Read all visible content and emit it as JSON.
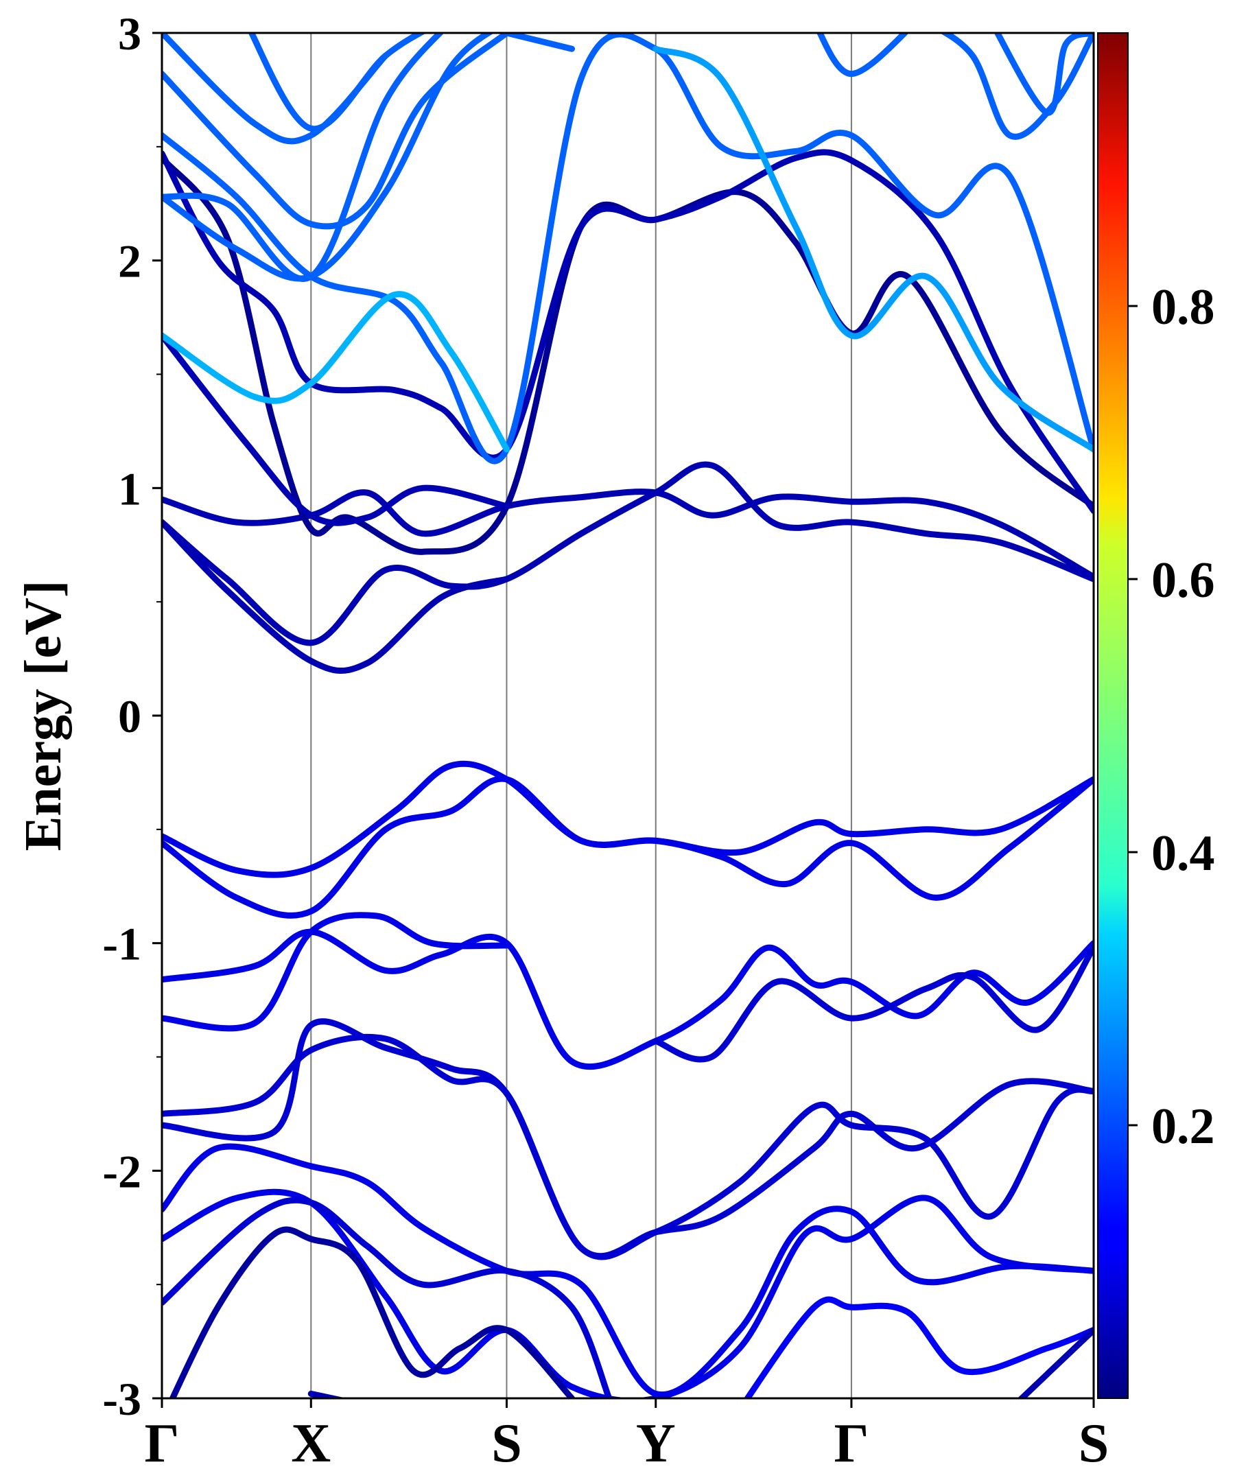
{
  "chart_data": {
    "type": "line",
    "ylabel": "Energy [eV]",
    "ylim": [
      -3,
      3
    ],
    "y_ticks": [
      "3",
      "2",
      "1",
      "0",
      "-1",
      "-2",
      "-3"
    ],
    "y_tick_values": [
      3,
      2,
      1,
      0,
      -1,
      -2,
      -3
    ],
    "x_ticks": [
      "Γ",
      "X",
      "S",
      "Y",
      "Γ",
      "S"
    ],
    "x_tick_positions": [
      0,
      0.8,
      1.85,
      2.65,
      3.7,
      5.0
    ],
    "xlim": [
      0,
      5.0
    ],
    "grid": "vertical lines at high-symmetry points",
    "colorbar": {
      "colormap": "jet",
      "range": [
        0,
        1
      ],
      "ticks": [
        "0.8",
        "0.6",
        "0.4",
        "0.2"
      ],
      "tick_values": [
        0.8,
        0.6,
        0.4,
        0.2
      ]
    },
    "series": [
      {
        "values": [
          [
            0,
            0.95
          ],
          [
            0.4,
            0.85
          ],
          [
            0.8,
            0.88
          ],
          [
            1.1,
            0.98
          ],
          [
            1.4,
            0.8
          ],
          [
            1.85,
            0.92
          ],
          [
            2.25,
            0.96
          ],
          [
            2.65,
            0.98
          ],
          [
            2.95,
            0.88
          ],
          [
            3.3,
            0.96
          ],
          [
            3.7,
            0.94
          ],
          [
            4.1,
            0.94
          ],
          [
            4.5,
            0.84
          ],
          [
            5.0,
            0.61
          ]
        ],
        "w": 0.05
      },
      {
        "values": [
          [
            0,
            0.85
          ],
          [
            0.35,
            0.6
          ],
          [
            0.8,
            0.32
          ],
          [
            1.2,
            0.64
          ],
          [
            1.55,
            0.57
          ],
          [
            1.85,
            0.6
          ],
          [
            2.25,
            0.8
          ],
          [
            2.65,
            0.98
          ],
          [
            2.95,
            1.1
          ],
          [
            3.3,
            0.84
          ],
          [
            3.7,
            0.85
          ],
          [
            4.1,
            0.8
          ],
          [
            4.5,
            0.76
          ],
          [
            5.0,
            0.6
          ]
        ],
        "w": 0.05
      },
      {
        "values": [
          [
            0,
            0.85
          ],
          [
            0.35,
            0.55
          ],
          [
            0.8,
            0.24
          ],
          [
            1.1,
            0.23
          ],
          [
            1.5,
            0.52
          ],
          [
            1.85,
            0.6
          ]
        ],
        "w": 0.05
      },
      {
        "values": [
          [
            0,
            -0.53
          ],
          [
            0.4,
            -0.68
          ],
          [
            0.8,
            -0.67
          ],
          [
            1.25,
            -0.42
          ],
          [
            1.55,
            -0.22
          ],
          [
            1.85,
            -0.28
          ],
          [
            2.25,
            -0.55
          ],
          [
            2.65,
            -0.55
          ],
          [
            3.1,
            -0.6
          ],
          [
            3.5,
            -0.47
          ],
          [
            3.7,
            -0.52
          ],
          [
            4.1,
            -0.5
          ],
          [
            4.5,
            -0.5
          ],
          [
            5.0,
            -0.28
          ]
        ],
        "w": 0.1
      },
      {
        "values": [
          [
            0,
            -0.56
          ],
          [
            0.4,
            -0.8
          ],
          [
            0.8,
            -0.86
          ],
          [
            1.2,
            -0.5
          ],
          [
            1.55,
            -0.42
          ],
          [
            1.85,
            -0.28
          ],
          [
            2.25,
            -0.55
          ],
          [
            2.65,
            -0.55
          ],
          [
            3.0,
            -0.62
          ],
          [
            3.35,
            -0.74
          ],
          [
            3.7,
            -0.56
          ],
          [
            4.15,
            -0.8
          ],
          [
            4.55,
            -0.58
          ],
          [
            5.0,
            -0.28
          ]
        ],
        "w": 0.1
      },
      {
        "values": [
          [
            0,
            -1.16
          ],
          [
            0.5,
            -1.1
          ],
          [
            0.8,
            -0.95
          ],
          [
            1.2,
            -1.12
          ],
          [
            1.5,
            -1.05
          ],
          [
            1.85,
            -1.0
          ],
          [
            2.2,
            -1.52
          ],
          [
            2.65,
            -1.43
          ],
          [
            3.0,
            -1.25
          ],
          [
            3.25,
            -1.02
          ],
          [
            3.5,
            -1.18
          ],
          [
            3.7,
            -1.17
          ],
          [
            4.05,
            -1.32
          ],
          [
            4.35,
            -1.13
          ],
          [
            4.65,
            -1.26
          ],
          [
            5.0,
            -1.0
          ]
        ],
        "w": 0.1
      },
      {
        "values": [
          [
            0,
            -1.33
          ],
          [
            0.5,
            -1.35
          ],
          [
            0.8,
            -0.95
          ],
          [
            1.15,
            -0.88
          ],
          [
            1.45,
            -1.0
          ],
          [
            1.85,
            -1.01
          ]
        ],
        "w": 0.1
      },
      {
        "values": [
          [
            2.65,
            -1.43
          ],
          [
            2.95,
            -1.5
          ],
          [
            3.3,
            -1.17
          ],
          [
            3.7,
            -1.33
          ],
          [
            4.1,
            -1.2
          ],
          [
            4.35,
            -1.15
          ],
          [
            4.7,
            -1.38
          ],
          [
            5.0,
            -1.02
          ]
        ],
        "w": 0.08
      },
      {
        "values": [
          [
            0,
            -1.75
          ],
          [
            0.5,
            -1.7
          ],
          [
            0.8,
            -1.47
          ],
          [
            1.2,
            -1.42
          ],
          [
            1.55,
            -1.6
          ],
          [
            1.85,
            -1.66
          ],
          [
            2.25,
            -2.34
          ],
          [
            2.65,
            -2.27
          ],
          [
            3.0,
            -2.2
          ],
          [
            3.5,
            -1.9
          ],
          [
            3.7,
            -1.75
          ],
          [
            4.05,
            -1.9
          ],
          [
            4.55,
            -1.62
          ],
          [
            5.0,
            -1.65
          ]
        ],
        "w": 0.08
      },
      {
        "values": [
          [
            0,
            -1.8
          ],
          [
            0.6,
            -1.83
          ],
          [
            0.8,
            -1.36
          ],
          [
            1.2,
            -1.46
          ],
          [
            1.55,
            -1.55
          ],
          [
            1.85,
            -1.66
          ],
          [
            2.25,
            -2.34
          ],
          [
            2.65,
            -2.27
          ],
          [
            3.1,
            -2.05
          ],
          [
            3.5,
            -1.72
          ],
          [
            3.7,
            -1.8
          ],
          [
            4.1,
            -1.86
          ],
          [
            4.45,
            -2.2
          ],
          [
            4.8,
            -1.7
          ],
          [
            5.0,
            -1.65
          ]
        ],
        "w": 0.08
      },
      {
        "values": [
          [
            0,
            -2.17
          ],
          [
            0.3,
            -1.9
          ],
          [
            0.8,
            -1.98
          ],
          [
            1.1,
            -2.05
          ],
          [
            1.4,
            -2.25
          ],
          [
            1.85,
            -2.44
          ],
          [
            2.25,
            -2.5
          ],
          [
            2.65,
            -2.98
          ],
          [
            3.1,
            -2.7
          ],
          [
            3.4,
            -2.27
          ],
          [
            3.7,
            -2.18
          ],
          [
            4.05,
            -2.48
          ],
          [
            4.55,
            -2.42
          ],
          [
            5.0,
            -2.44
          ]
        ],
        "w": 0.1
      },
      {
        "values": [
          [
            0,
            -2.3
          ],
          [
            0.4,
            -2.12
          ],
          [
            0.8,
            -2.14
          ],
          [
            1.2,
            -2.55
          ],
          [
            1.5,
            -2.88
          ],
          [
            1.85,
            -2.7
          ],
          [
            2.2,
            -2.95
          ],
          [
            2.65,
            -3.0
          ],
          [
            3.1,
            -2.78
          ],
          [
            3.45,
            -2.28
          ],
          [
            3.7,
            -2.3
          ],
          [
            4.1,
            -2.12
          ],
          [
            4.45,
            -2.38
          ],
          [
            5.0,
            -2.44
          ]
        ],
        "w": 0.1
      },
      {
        "values": [
          [
            0,
            -2.58
          ],
          [
            0.5,
            -2.2
          ],
          [
            0.8,
            -2.14
          ],
          [
            1.1,
            -2.33
          ],
          [
            1.4,
            -2.5
          ],
          [
            1.85,
            -2.44
          ],
          [
            2.2,
            -2.6
          ],
          [
            2.4,
            -3.0
          ]
        ],
        "w": 0.08
      },
      {
        "values": [
          [
            0,
            -3.1
          ],
          [
            0.3,
            -2.6
          ],
          [
            0.6,
            -2.28
          ],
          [
            0.8,
            -2.3
          ],
          [
            1.05,
            -2.4
          ],
          [
            1.35,
            -2.88
          ],
          [
            1.6,
            -2.78
          ],
          [
            1.85,
            -2.7
          ],
          [
            2.2,
            -3.0
          ]
        ],
        "w": 0.03
      },
      {
        "values": [
          [
            0.8,
            -2.98
          ],
          [
            1.2,
            -3.05
          ]
        ],
        "w": 0.05
      },
      {
        "values": [
          [
            3.1,
            -3.05
          ],
          [
            3.5,
            -2.6
          ],
          [
            3.7,
            -2.6
          ],
          [
            4.0,
            -2.62
          ],
          [
            4.3,
            -2.88
          ],
          [
            4.75,
            -2.78
          ],
          [
            5.0,
            -2.7
          ]
        ],
        "w": 0.12
      },
      {
        "values": [
          [
            4.55,
            -3.05
          ],
          [
            5.0,
            -2.7
          ]
        ],
        "w": 0.05
      },
      {
        "values": [
          [
            0,
            2.45
          ],
          [
            0.35,
            2.1
          ],
          [
            0.6,
            1.28
          ],
          [
            0.8,
            0.82
          ],
          [
            1.0,
            0.87
          ],
          [
            1.4,
            0.72
          ],
          [
            1.85,
            0.92
          ],
          [
            2.25,
            2.15
          ],
          [
            2.65,
            2.18
          ],
          [
            3.1,
            2.3
          ],
          [
            3.4,
            2.08
          ],
          [
            3.7,
            1.68
          ],
          [
            4.0,
            1.93
          ],
          [
            4.5,
            1.25
          ],
          [
            5.0,
            0.92
          ]
        ],
        "w": 0.02
      },
      {
        "values": [
          [
            0,
            2.47
          ],
          [
            0.3,
            2.0
          ],
          [
            0.6,
            1.78
          ],
          [
            0.8,
            1.46
          ],
          [
            1.25,
            1.43
          ],
          [
            1.5,
            1.35
          ],
          [
            1.85,
            1.17
          ],
          [
            2.25,
            2.15
          ],
          [
            2.65,
            2.18
          ],
          [
            3.0,
            2.28
          ],
          [
            3.4,
            2.45
          ],
          [
            3.7,
            2.44
          ],
          [
            4.15,
            2.12
          ],
          [
            4.55,
            1.45
          ],
          [
            5.0,
            0.9
          ]
        ],
        "w": 0.05
      },
      {
        "values": [
          [
            0,
            2.55
          ],
          [
            0.4,
            2.28
          ],
          [
            0.8,
            1.93
          ],
          [
            1.25,
            1.82
          ],
          [
            1.5,
            1.55
          ],
          [
            1.85,
            1.17
          ],
          [
            2.25,
            2.8
          ],
          [
            2.65,
            2.93
          ],
          [
            3.0,
            2.5
          ],
          [
            3.4,
            2.48
          ],
          [
            3.7,
            2.55
          ],
          [
            4.15,
            2.2
          ],
          [
            4.55,
            2.37
          ],
          [
            5.0,
            1.17
          ]
        ],
        "w": 0.22
      },
      {
        "values": [
          [
            0,
            1.67
          ],
          [
            0.45,
            1.2
          ],
          [
            0.8,
            0.88
          ],
          [
            1.1,
            0.87
          ],
          [
            1.4,
            1.0
          ],
          [
            1.85,
            0.92
          ]
        ],
        "w": 0.05
      },
      {
        "values": [
          [
            0,
            1.67
          ],
          [
            0.5,
            1.4
          ],
          [
            0.8,
            1.46
          ],
          [
            1.25,
            1.85
          ],
          [
            1.55,
            1.6
          ],
          [
            1.85,
            1.17
          ]
        ],
        "w": 0.3
      },
      {
        "values": [
          [
            0,
            2.28
          ],
          [
            0.4,
            2.05
          ],
          [
            0.8,
            1.93
          ],
          [
            1.2,
            2.3
          ],
          [
            1.55,
            2.85
          ],
          [
            1.85,
            3.05
          ]
        ],
        "w": 0.22
      },
      {
        "values": [
          [
            0,
            2.82
          ],
          [
            0.5,
            2.38
          ],
          [
            0.8,
            2.16
          ],
          [
            1.1,
            2.24
          ],
          [
            1.4,
            2.7
          ],
          [
            1.85,
            3.0
          ]
        ],
        "w": 0.22
      },
      {
        "values": [
          [
            0,
            2.28
          ],
          [
            0.35,
            2.25
          ],
          [
            0.8,
            1.93
          ],
          [
            1.2,
            2.7
          ],
          [
            1.55,
            3.05
          ]
        ],
        "w": 0.22
      },
      {
        "values": [
          [
            0,
            3.0
          ],
          [
            0.5,
            2.6
          ],
          [
            0.8,
            2.55
          ],
          [
            1.2,
            2.9
          ]
        ],
        "w": 0.22
      },
      {
        "values": [
          [
            0.45,
            3.05
          ],
          [
            0.8,
            2.58
          ],
          [
            1.2,
            2.9
          ],
          [
            1.5,
            3.05
          ]
        ],
        "w": 0.22
      },
      {
        "values": [
          [
            1.85,
            3.0
          ],
          [
            2.2,
            2.93
          ]
        ],
        "w": 0.22
      },
      {
        "values": [
          [
            2.65,
            2.93
          ],
          [
            3.0,
            2.8
          ],
          [
            3.4,
            2.15
          ],
          [
            3.7,
            1.67
          ],
          [
            4.1,
            1.93
          ],
          [
            4.5,
            1.45
          ],
          [
            5.0,
            1.17
          ]
        ],
        "w": 0.28
      },
      {
        "values": [
          [
            3.5,
            3.05
          ],
          [
            3.7,
            2.82
          ],
          [
            4.05,
            3.05
          ]
        ],
        "w": 0.22
      },
      {
        "values": [
          [
            4.1,
            3.05
          ],
          [
            4.35,
            2.9
          ],
          [
            4.55,
            2.55
          ],
          [
            4.8,
            2.7
          ],
          [
            5.0,
            3.0
          ]
        ],
        "w": 0.22
      },
      {
        "values": [
          [
            4.45,
            3.05
          ],
          [
            4.75,
            2.65
          ],
          [
            4.85,
            2.95
          ],
          [
            5.0,
            3.0
          ]
        ],
        "w": 0.22
      }
    ]
  }
}
